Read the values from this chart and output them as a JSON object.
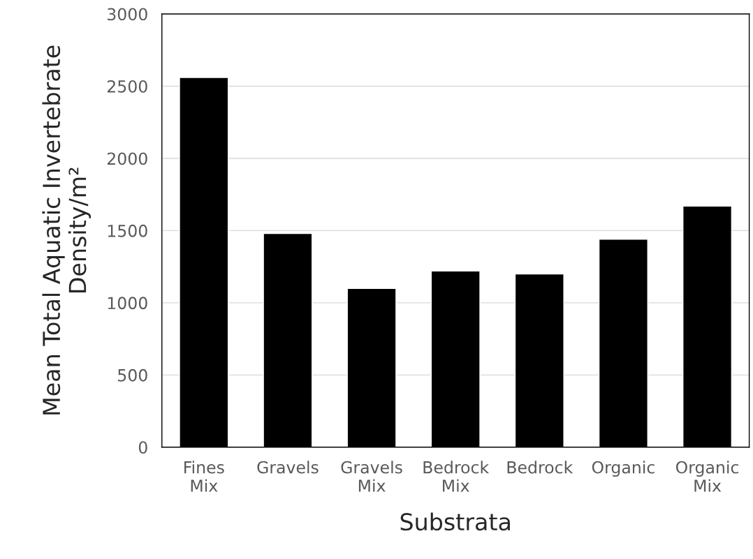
{
  "chart_data": {
    "type": "bar",
    "xlabel": "Substrata",
    "ylabel": "Mean Total Aquatic Invertebrate\nDensity/m²",
    "categories": [
      "Fines\nMix",
      "Gravels",
      "Gravels\nMix",
      "Bedrock\nMix",
      "Bedrock",
      "Organic",
      "Organic\nMix"
    ],
    "values": [
      2560,
      1480,
      1100,
      1220,
      1200,
      1440,
      1670
    ],
    "color": "#000000",
    "ylim": [
      0,
      3000
    ],
    "yticks": [
      0,
      500,
      1000,
      1500,
      2000,
      2500,
      3000
    ],
    "grid": "y"
  }
}
